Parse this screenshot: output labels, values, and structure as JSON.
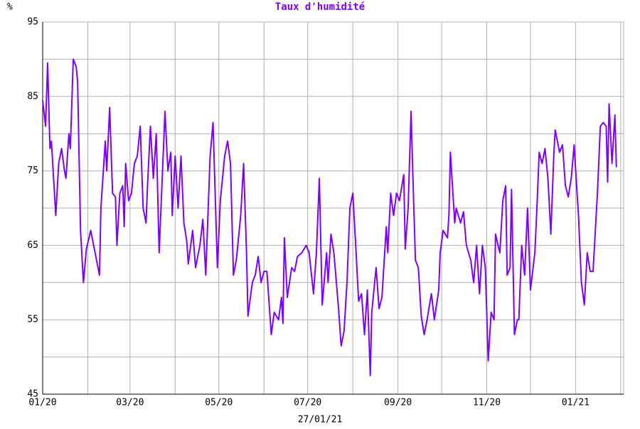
{
  "chart_data": {
    "type": "line",
    "title": "Taux d'humidité",
    "y_unit": "%",
    "date_label": "27/01/21",
    "color": "#7f00ff",
    "grid": true,
    "xlim": [
      0,
      399
    ],
    "xticks": [
      {
        "value": 0,
        "label": "01/20"
      },
      {
        "value": 60,
        "label": "03/20"
      },
      {
        "value": 121,
        "label": "05/20"
      },
      {
        "value": 182,
        "label": "07/20"
      },
      {
        "value": 244,
        "label": "09/20"
      },
      {
        "value": 305,
        "label": "11/20"
      },
      {
        "value": 366,
        "label": "01/21"
      }
    ],
    "xgrid": [
      31,
      91,
      152,
      213,
      274,
      335,
      397
    ],
    "ylim": [
      45,
      95
    ],
    "yticks": [
      45,
      55,
      65,
      75,
      85,
      95
    ],
    "ygrid": [
      50,
      60,
      70,
      80,
      90
    ],
    "x": [
      0,
      2,
      3.4,
      5,
      6,
      9,
      11,
      13,
      15,
      16,
      18,
      19,
      21,
      23,
      24,
      26,
      28,
      30,
      33,
      37,
      39,
      40,
      43,
      44,
      46,
      48,
      50,
      51,
      53,
      55,
      56,
      57,
      59,
      61,
      63,
      65,
      67,
      69,
      71,
      72,
      74,
      76,
      78,
      80,
      84,
      86,
      88,
      89,
      91,
      93,
      95,
      97,
      99,
      100,
      103,
      105,
      108,
      110,
      112,
      115,
      117,
      120,
      122,
      125,
      127,
      129,
      131,
      133,
      136,
      138,
      140,
      141,
      144,
      146,
      148,
      150,
      152,
      154,
      157,
      159,
      162,
      164,
      165,
      166,
      168,
      171,
      173,
      175,
      178,
      181,
      183,
      186,
      188,
      190,
      192,
      195,
      196,
      198,
      200,
      203,
      205,
      207,
      209,
      211,
      213,
      215,
      217,
      219,
      221,
      223,
      225,
      226,
      229,
      231,
      233,
      236,
      237,
      239,
      241,
      243,
      245,
      248,
      249,
      251,
      253,
      254,
      256,
      258,
      260,
      262,
      264,
      267,
      269,
      272,
      273,
      275,
      278,
      279,
      280,
      283,
      284,
      287,
      289,
      291,
      294,
      296,
      298,
      300,
      302,
      304,
      306,
      308,
      310,
      311,
      314,
      316,
      318,
      319,
      321,
      322,
      324,
      326,
      327,
      329,
      331,
      333,
      335,
      338,
      339,
      341,
      343,
      345,
      347,
      349,
      351,
      352,
      355,
      357,
      359,
      361,
      363,
      365,
      367,
      368,
      370,
      372,
      374,
      376,
      378,
      381,
      383,
      385,
      387,
      388,
      389,
      391,
      393,
      394
    ],
    "values": [
      84.5,
      81,
      89.5,
      78,
      79,
      69,
      76,
      78,
      75,
      74,
      80,
      78,
      90,
      89,
      87,
      67,
      60,
      64.5,
      67,
      63,
      61,
      70,
      79,
      75,
      83.5,
      72,
      71.5,
      65,
      72,
      73,
      67.5,
      76,
      71,
      72,
      76,
      77,
      81,
      70,
      68,
      73,
      81,
      74,
      80,
      64,
      83,
      75,
      77.5,
      69,
      77,
      70,
      77,
      68,
      65.5,
      62.5,
      67,
      62,
      65,
      68.5,
      61,
      77,
      81.5,
      62,
      71,
      77,
      79,
      76,
      61,
      63,
      69,
      76,
      64,
      55.5,
      60,
      61,
      63.5,
      60,
      61.5,
      61.5,
      53,
      56,
      55,
      58,
      54.5,
      66,
      58,
      62,
      61.5,
      63.5,
      64,
      65,
      64,
      58.5,
      64,
      74,
      57,
      64,
      60,
      66.5,
      64,
      57,
      51.5,
      53.5,
      60,
      70,
      72,
      65,
      57.5,
      58.5,
      53,
      59,
      47.5,
      56,
      62,
      56.5,
      58,
      67.5,
      64,
      72,
      69,
      72,
      71,
      74.5,
      64.5,
      70,
      83,
      76,
      63,
      62,
      55.5,
      53,
      55,
      58.5,
      55,
      59,
      64,
      67,
      66,
      69,
      77.5,
      68,
      70,
      68,
      69.5,
      65,
      63,
      60,
      65,
      58.5,
      65,
      62,
      49.5,
      56,
      55,
      66.5,
      64,
      71,
      73,
      61,
      62,
      72.5,
      53,
      55,
      55,
      65,
      61,
      70,
      59,
      64,
      68,
      77.5,
      76,
      78,
      74,
      66.5,
      77,
      80.5,
      77.5,
      78.5,
      73,
      71.5,
      74,
      78.5,
      72,
      69,
      60,
      57,
      64,
      61.5,
      61.5,
      72,
      81,
      81.5,
      81,
      73.5,
      84,
      76,
      82.5,
      75.5
    ]
  }
}
